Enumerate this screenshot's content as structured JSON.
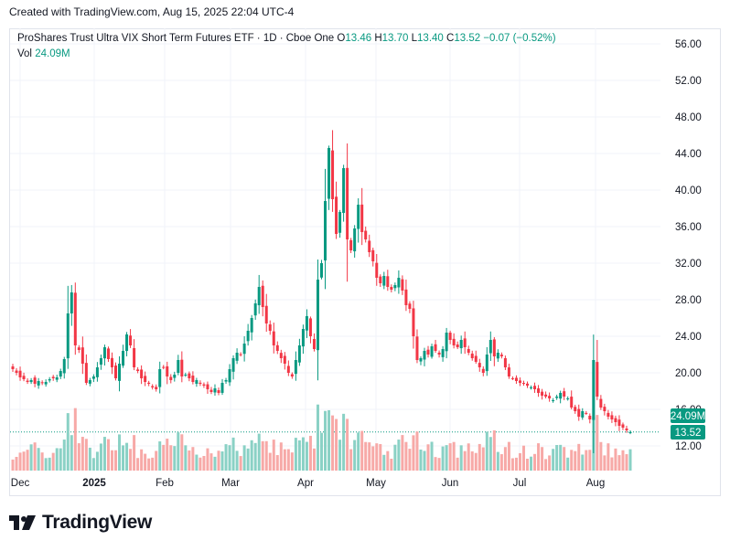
{
  "credit": "Created with TradingView.com, Aug 15, 2025 22:04 UTC-4",
  "legend": {
    "title": "ProShares Trust Ultra VIX Short Term Futures ETF · 1D · Cboe One",
    "open_label": "O",
    "open": "13.46",
    "high_label": "H",
    "high": "13.70",
    "low_label": "L",
    "low": "13.40",
    "close_label": "C",
    "close": "13.52",
    "change": "−0.07 (−0.52%)",
    "vol_label": "Vol",
    "vol": "24.09M"
  },
  "brand": "TradingView",
  "colors": {
    "up": "#089981",
    "down": "#f23645",
    "up_vol": "#8ad1c5",
    "down_vol": "#f7a9a7",
    "grid": "#f0f3fa",
    "text": "#131722"
  },
  "chart_data": {
    "type": "candlestick",
    "title": "ProShares Trust Ultra VIX Short Term Futures ETF · 1D · Cboe One",
    "ylim": [
      9.6,
      57.6
    ],
    "y_ticks": [
      "56.00",
      "52.00",
      "48.00",
      "44.00",
      "40.00",
      "36.00",
      "32.00",
      "28.00",
      "24.00",
      "20.00",
      "16.00",
      "12.00"
    ],
    "x_ticks": [
      "Dec",
      "2025",
      "Feb",
      "Mar",
      "Apr",
      "May",
      "Jun",
      "Jul",
      "Aug"
    ],
    "price_badge": "13.52",
    "volume_badge": "24.09M",
    "last_price": 13.52,
    "close_series": [
      20.4,
      20.0,
      19.5,
      19.3,
      19.0,
      19.2,
      18.8,
      19.1,
      18.9,
      19.0,
      19.3,
      19.4,
      19.5,
      20.2,
      21.5,
      26.5,
      28.8,
      23.0,
      22.5,
      21.0,
      18.9,
      19.2,
      19.6,
      20.6,
      21.6,
      22.8,
      21.5,
      20.6,
      19.4,
      21.0,
      22.4,
      24.2,
      23.0,
      20.6,
      20.2,
      19.4,
      19.0,
      18.8,
      18.4,
      18.2,
      20.4,
      20.6,
      19.6,
      19.2,
      19.8,
      21.4,
      19.6,
      19.8,
      19.4,
      19.0,
      19.2,
      18.8,
      18.6,
      18.2,
      17.9,
      18.3,
      17.8,
      18.9,
      19.2,
      20.4,
      21.6,
      22.2,
      22.0,
      23.2,
      24.6,
      26.0,
      27.6,
      29.4,
      27.2,
      25.4,
      24.6,
      23.0,
      22.4,
      21.6,
      21.0,
      20.0,
      19.6,
      21.4,
      23.0,
      24.8,
      26.2,
      24.0,
      22.6,
      30.2,
      32.0,
      38.8,
      44.6,
      39.0,
      35.2,
      37.6,
      42.4,
      34.6,
      33.4,
      35.8,
      38.4,
      35.4,
      34.6,
      33.2,
      32.2,
      30.4,
      29.8,
      30.6,
      29.4,
      29.1,
      29.6,
      30.4,
      29.0,
      27.4,
      27.0,
      24.0,
      21.4,
      21.6,
      22.4,
      22.0,
      22.9,
      22.4,
      22.0,
      22.6,
      24.4,
      23.6,
      23.0,
      22.8,
      23.6,
      22.8,
      22.2,
      21.6,
      21.2,
      20.6,
      20.0,
      22.0,
      23.6,
      21.8,
      22.2,
      21.8,
      20.6,
      19.6,
      19.4,
      19.1,
      18.9,
      18.8,
      18.6,
      18.4,
      18.2,
      17.8,
      17.5,
      17.4,
      17.2,
      17.0,
      17.4,
      17.8,
      17.4,
      17.2,
      16.2,
      15.8,
      15.2,
      15.8,
      15.6,
      14.9,
      21.4,
      17.4,
      16.2,
      15.8,
      15.2,
      14.9,
      14.6,
      14.2,
      14.0,
      13.7,
      13.5
    ],
    "volume_badge_value": "24.09M"
  }
}
